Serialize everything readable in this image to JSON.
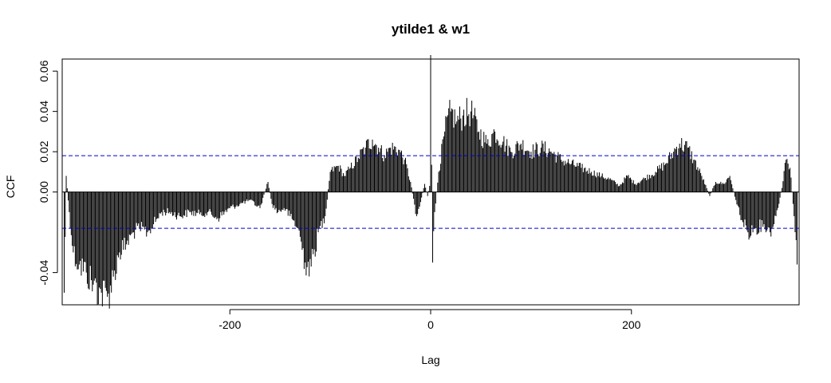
{
  "chart_data": {
    "type": "bar",
    "title": "ytilde1 & w1",
    "xlabel": "Lag",
    "ylabel": "CCF",
    "xlim": [
      -367,
      367
    ],
    "ylim": [
      -0.056,
      0.066
    ],
    "x_ticks": [
      -200,
      0,
      200
    ],
    "x_tick_labels": [
      "-200",
      "0",
      "200"
    ],
    "y_ticks": [
      -0.04,
      0.0,
      0.02,
      0.04,
      0.06
    ],
    "y_tick_labels": [
      "-0.04",
      "0.00",
      "0.02",
      "0.04",
      "0.06"
    ],
    "zero_line": 0,
    "confidence_bound": 0.018,
    "confidence_color": "#0000cc",
    "bar_color": "#000000",
    "grid": false,
    "lag_range": [
      -365,
      365
    ],
    "profile": [
      [
        -365,
        -0.05
      ],
      [
        -363,
        0.008
      ],
      [
        -360,
        -0.01
      ],
      [
        -356,
        -0.03
      ],
      [
        -350,
        -0.036
      ],
      [
        -343,
        -0.04
      ],
      [
        -336,
        -0.046
      ],
      [
        -328,
        -0.05
      ],
      [
        -322,
        -0.052
      ],
      [
        -316,
        -0.042
      ],
      [
        -310,
        -0.03
      ],
      [
        -303,
        -0.026
      ],
      [
        -296,
        -0.02
      ],
      [
        -290,
        -0.018
      ],
      [
        -282,
        -0.02
      ],
      [
        -276,
        -0.016
      ],
      [
        -268,
        -0.01
      ],
      [
        -260,
        -0.01
      ],
      [
        -250,
        -0.012
      ],
      [
        -240,
        -0.01
      ],
      [
        -230,
        -0.011
      ],
      [
        -222,
        -0.01
      ],
      [
        -212,
        -0.013
      ],
      [
        -200,
        -0.008
      ],
      [
        -190,
        -0.006
      ],
      [
        -180,
        -0.004
      ],
      [
        -170,
        -0.008
      ],
      [
        -162,
        0.005
      ],
      [
        -158,
        -0.006
      ],
      [
        -152,
        -0.01
      ],
      [
        -146,
        -0.008
      ],
      [
        -140,
        -0.012
      ],
      [
        -132,
        -0.018
      ],
      [
        -125,
        -0.035
      ],
      [
        -119,
        -0.037
      ],
      [
        -112,
        -0.02
      ],
      [
        -105,
        -0.012
      ],
      [
        -100,
        0.01
      ],
      [
        -92,
        0.013
      ],
      [
        -86,
        0.008
      ],
      [
        -80,
        0.012
      ],
      [
        -72,
        0.017
      ],
      [
        -65,
        0.022
      ],
      [
        -58,
        0.026
      ],
      [
        -52,
        0.022
      ],
      [
        -46,
        0.018
      ],
      [
        -40,
        0.022
      ],
      [
        -32,
        0.021
      ],
      [
        -26,
        0.016
      ],
      [
        -20,
        0.005
      ],
      [
        -14,
        -0.012
      ],
      [
        -10,
        -0.005
      ],
      [
        -6,
        0.004
      ],
      [
        -3,
        -0.002
      ],
      [
        -1,
        0.003
      ],
      [
        0,
        0.068
      ],
      [
        2,
        -0.035
      ],
      [
        4,
        -0.01
      ],
      [
        8,
        0.01
      ],
      [
        14,
        0.03
      ],
      [
        20,
        0.04
      ],
      [
        26,
        0.035
      ],
      [
        32,
        0.038
      ],
      [
        40,
        0.04
      ],
      [
        48,
        0.03
      ],
      [
        56,
        0.024
      ],
      [
        64,
        0.03
      ],
      [
        72,
        0.025
      ],
      [
        80,
        0.02
      ],
      [
        90,
        0.024
      ],
      [
        100,
        0.02
      ],
      [
        110,
        0.022
      ],
      [
        120,
        0.02
      ],
      [
        130,
        0.016
      ],
      [
        140,
        0.014
      ],
      [
        150,
        0.012
      ],
      [
        160,
        0.01
      ],
      [
        170,
        0.008
      ],
      [
        180,
        0.006
      ],
      [
        188,
        0.003
      ],
      [
        196,
        0.008
      ],
      [
        204,
        0.004
      ],
      [
        214,
        0.007
      ],
      [
        224,
        0.01
      ],
      [
        234,
        0.014
      ],
      [
        242,
        0.02
      ],
      [
        248,
        0.024
      ],
      [
        256,
        0.022
      ],
      [
        262,
        0.016
      ],
      [
        270,
        0.008
      ],
      [
        278,
        -0.002
      ],
      [
        284,
        0.005
      ],
      [
        292,
        0.004
      ],
      [
        298,
        0.008
      ],
      [
        304,
        -0.004
      ],
      [
        310,
        -0.014
      ],
      [
        316,
        -0.02
      ],
      [
        324,
        -0.018
      ],
      [
        332,
        -0.016
      ],
      [
        338,
        -0.02
      ],
      [
        344,
        -0.012
      ],
      [
        350,
        0.002
      ],
      [
        354,
        0.016
      ],
      [
        358,
        0.012
      ],
      [
        362,
        -0.012
      ],
      [
        365,
        -0.036
      ]
    ]
  }
}
